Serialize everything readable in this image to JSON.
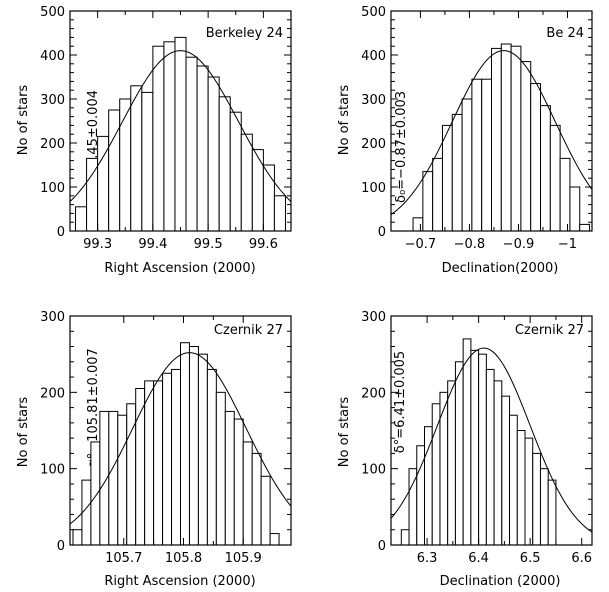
{
  "chart_data": [
    {
      "type": "bar",
      "panel_label": "Berkeley 24",
      "annotation": "α₀=99.45±0.004",
      "xlabel": "Right Ascension (2000)",
      "ylabel": "No of stars",
      "xlim": [
        99.25,
        99.65
      ],
      "ylim": [
        0,
        500
      ],
      "x_reversed": false,
      "xticks": [
        99.3,
        99.4,
        99.5,
        99.6
      ],
      "xtick_labels": [
        "99.3",
        "99.4",
        "99.5",
        "99.6"
      ],
      "yticks": [
        0,
        100,
        200,
        300,
        400,
        500
      ],
      "ytick_labels": [
        "0",
        "100",
        "200",
        "300",
        "400",
        "500"
      ],
      "bin_start": 99.26,
      "bin_width": 0.02,
      "values": [
        55,
        165,
        215,
        275,
        300,
        330,
        315,
        420,
        430,
        440,
        395,
        375,
        350,
        305,
        270,
        220,
        185,
        150,
        80
      ],
      "fit": {
        "type": "gaussian",
        "mu": 99.45,
        "sigma": 0.105,
        "amp": 410
      }
    },
    {
      "type": "bar",
      "panel_label": "Be 24",
      "annotation": "δ₀=−0.87±0.003",
      "xlabel": "Declination(2000)",
      "ylabel": "No of stars",
      "xlim": [
        -0.64,
        -1.05
      ],
      "ylim": [
        0,
        500
      ],
      "x_reversed": true,
      "xticks": [
        -0.7,
        -0.8,
        -0.9,
        -1.0
      ],
      "xtick_labels": [
        "−0.7",
        "−0.8",
        "−0.9",
        "−1"
      ],
      "yticks": [
        0,
        100,
        200,
        300,
        400,
        500
      ],
      "ytick_labels": [
        "0",
        "100",
        "200",
        "300",
        "400",
        "500"
      ],
      "bin_start": -0.685,
      "bin_width": -0.02,
      "values": [
        30,
        135,
        165,
        240,
        265,
        300,
        345,
        345,
        415,
        425,
        420,
        385,
        335,
        285,
        240,
        165,
        100,
        15
      ],
      "fit": {
        "type": "gaussian",
        "mu": -0.87,
        "sigma": 0.105,
        "amp": 410
      }
    },
    {
      "type": "bar",
      "panel_label": "Czernik 27",
      "annotation": "α°=105.81±0.007",
      "xlabel": "Right Ascension (2000)",
      "ylabel": "No of stars",
      "xlim": [
        105.61,
        105.98
      ],
      "ylim": [
        0,
        300
      ],
      "x_reversed": false,
      "xticks": [
        105.7,
        105.8,
        105.9
      ],
      "xtick_labels": [
        "105.7",
        "105.8",
        "105.9"
      ],
      "yticks": [
        0,
        100,
        200,
        300
      ],
      "ytick_labels": [
        "0",
        "100",
        "200",
        "300"
      ],
      "bin_start": 105.615,
      "bin_width": 0.015,
      "values": [
        20,
        85,
        135,
        175,
        175,
        170,
        185,
        205,
        215,
        215,
        225,
        230,
        265,
        260,
        250,
        230,
        200,
        175,
        165,
        135,
        120,
        90,
        15
      ],
      "fit": {
        "type": "gaussian",
        "mu": 105.81,
        "sigma": 0.095,
        "amp": 252
      }
    },
    {
      "type": "bar",
      "panel_label": "Czernik 27",
      "annotation": "δ°=6.41±0.005",
      "xlabel": "Declination (2000)",
      "ylabel": "No of stars",
      "xlim": [
        6.23,
        6.62
      ],
      "ylim": [
        0,
        300
      ],
      "x_reversed": false,
      "xticks": [
        6.3,
        6.4,
        6.5,
        6.6
      ],
      "xtick_labels": [
        "6.3",
        "6.4",
        "6.5",
        "6.6"
      ],
      "yticks": [
        0,
        100,
        200,
        300
      ],
      "ytick_labels": [
        "0",
        "100",
        "200",
        "300"
      ],
      "bin_start": 6.25,
      "bin_width": 0.015,
      "values": [
        20,
        100,
        130,
        155,
        185,
        200,
        215,
        240,
        270,
        255,
        250,
        230,
        215,
        195,
        170,
        150,
        140,
        120,
        100,
        85
      ],
      "fit": {
        "type": "gaussian",
        "mu": 6.41,
        "sigma": 0.09,
        "amp": 258
      }
    }
  ]
}
